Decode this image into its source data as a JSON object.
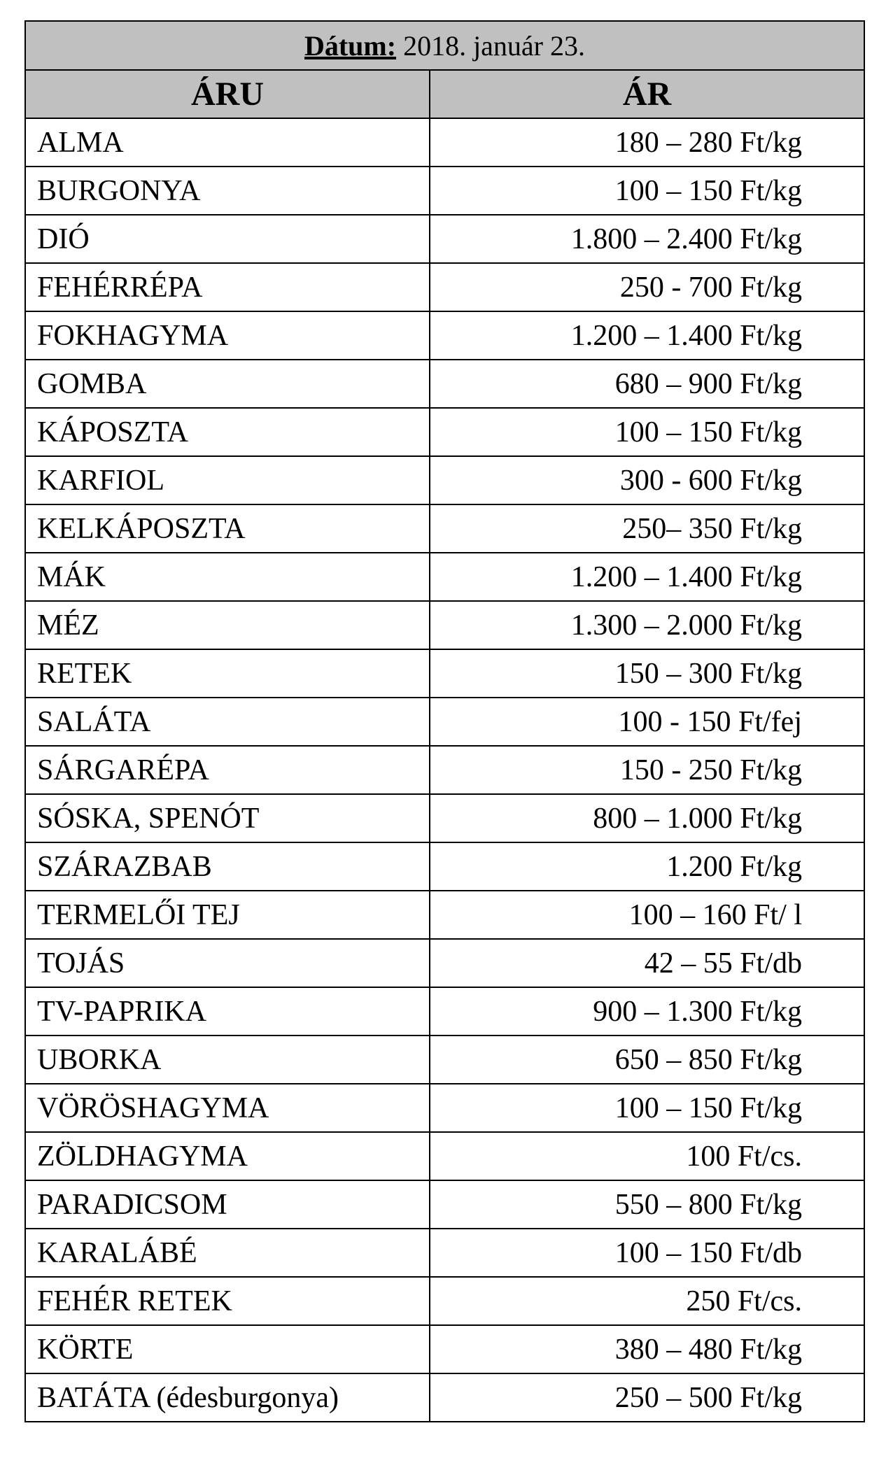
{
  "date": {
    "label": "Dátum:",
    "value": "2018. január 23."
  },
  "columns": {
    "product": "ÁRU",
    "price": "ÁR"
  },
  "rows": [
    {
      "name": "ALMA",
      "price": "180 – 280 Ft/kg"
    },
    {
      "name": "BURGONYA",
      "price": "100 – 150 Ft/kg"
    },
    {
      "name": "DIÓ",
      "price": "1.800 – 2.400 Ft/kg"
    },
    {
      "name": "FEHÉRRÉPA",
      "price": "250 - 700 Ft/kg"
    },
    {
      "name": "FOKHAGYMA",
      "price": "1.200 – 1.400 Ft/kg"
    },
    {
      "name": "GOMBA",
      "price": "680 – 900 Ft/kg"
    },
    {
      "name": "KÁPOSZTA",
      "price": "100 – 150 Ft/kg"
    },
    {
      "name": "KARFIOL",
      "price": "300 - 600 Ft/kg"
    },
    {
      "name": "KELKÁPOSZTA",
      "price": "250– 350 Ft/kg"
    },
    {
      "name": "MÁK",
      "price": "1.200 – 1.400 Ft/kg"
    },
    {
      "name": "MÉZ",
      "price": "1.300 – 2.000 Ft/kg"
    },
    {
      "name": "RETEK",
      "price": "150 – 300 Ft/kg"
    },
    {
      "name": "SALÁTA",
      "price": "100 - 150 Ft/fej"
    },
    {
      "name": "SÁRGARÉPA",
      "price": "150 - 250 Ft/kg"
    },
    {
      "name": "SÓSKA, SPENÓT",
      "price": "800 – 1.000 Ft/kg"
    },
    {
      "name": "SZÁRAZBAB",
      "price": "1.200 Ft/kg"
    },
    {
      "name": "TERMELŐI TEJ",
      "price": "100 – 160 Ft/ l"
    },
    {
      "name": "TOJÁS",
      "price": "42 – 55 Ft/db"
    },
    {
      "name": "TV-PAPRIKA",
      "price": "900 – 1.300 Ft/kg"
    },
    {
      "name": "UBORKA",
      "price": "650 – 850 Ft/kg"
    },
    {
      "name": "VÖRÖSHAGYMA",
      "price": "100 – 150 Ft/kg"
    },
    {
      "name": "ZÖLDHAGYMA",
      "price": "100 Ft/cs."
    },
    {
      "name": "PARADICSOM",
      "price": "550 – 800 Ft/kg"
    },
    {
      "name": "KARALÁBÉ",
      "price": "100 – 150 Ft/db"
    },
    {
      "name": "FEHÉR RETEK",
      "price": "250 Ft/cs."
    },
    {
      "name": "KÖRTE",
      "price": "380 – 480 Ft/kg"
    },
    {
      "name": "BATÁTA (édesburgonya)",
      "price": "250 – 500 Ft/kg"
    }
  ]
}
